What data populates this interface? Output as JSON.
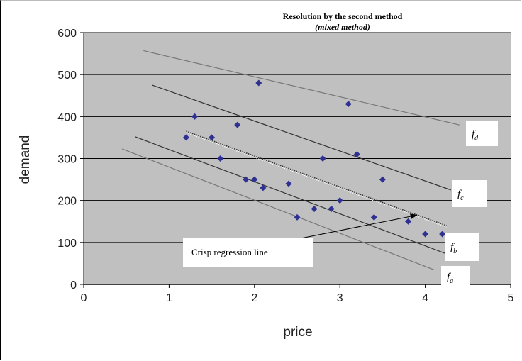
{
  "chart_data": {
    "type": "scatter",
    "title": "Resolution by the second method",
    "subtitle": "(mixed method)",
    "xlabel": "price",
    "ylabel": "demand",
    "xlim": [
      0,
      5
    ],
    "ylim": [
      0,
      600
    ],
    "x_ticks": [
      "0",
      "1",
      "2",
      "3",
      "4",
      "5"
    ],
    "y_ticks": [
      "0",
      "100",
      "200",
      "300",
      "400",
      "500",
      "600"
    ],
    "grid": "horizontal",
    "points": [
      {
        "x": 1.2,
        "y": 350
      },
      {
        "x": 1.3,
        "y": 400
      },
      {
        "x": 1.5,
        "y": 350
      },
      {
        "x": 1.6,
        "y": 300
      },
      {
        "x": 1.8,
        "y": 380
      },
      {
        "x": 1.9,
        "y": 250
      },
      {
        "x": 2.0,
        "y": 250
      },
      {
        "x": 2.05,
        "y": 480
      },
      {
        "x": 2.1,
        "y": 230
      },
      {
        "x": 2.4,
        "y": 240
      },
      {
        "x": 2.5,
        "y": 160
      },
      {
        "x": 2.7,
        "y": 180
      },
      {
        "x": 2.8,
        "y": 300
      },
      {
        "x": 2.9,
        "y": 180
      },
      {
        "x": 3.0,
        "y": 200
      },
      {
        "x": 3.1,
        "y": 430
      },
      {
        "x": 3.2,
        "y": 310
      },
      {
        "x": 3.4,
        "y": 160
      },
      {
        "x": 3.5,
        "y": 250
      },
      {
        "x": 3.8,
        "y": 150
      },
      {
        "x": 4.0,
        "y": 120
      },
      {
        "x": 4.2,
        "y": 120
      }
    ],
    "lines": [
      {
        "name": "f",
        "sub": "d",
        "x": [
          0.7,
          4.4
        ],
        "y": [
          557,
          380
        ],
        "color": "#777777"
      },
      {
        "name": "f",
        "sub": "c",
        "x": [
          0.8,
          4.3
        ],
        "y": [
          475,
          225
        ],
        "color": "#333333"
      },
      {
        "name": "f",
        "sub": "b",
        "x": [
          0.6,
          4.35
        ],
        "y": [
          352,
          65
        ],
        "color": "#333333"
      },
      {
        "name": "f",
        "sub": "a",
        "x": [
          0.45,
          4.1
        ],
        "y": [
          323,
          35
        ],
        "color": "#777777"
      }
    ],
    "crisp_line": {
      "label": "Crisp regression line",
      "x": [
        1.2,
        4.25
      ],
      "y": [
        365,
        140
      ]
    },
    "annotation_arrow": {
      "x1": 2.3,
      "y1": 100,
      "x2": 3.9,
      "y2": 165
    }
  }
}
